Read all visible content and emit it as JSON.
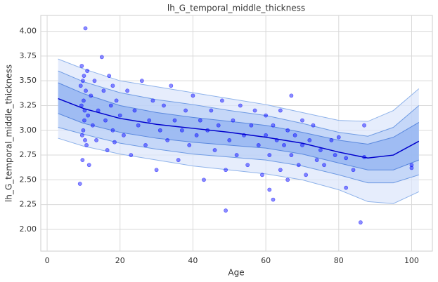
{
  "chart_data": {
    "type": "scatter",
    "title": "lh_G_temporal_middle_thickness",
    "x_label": "Age",
    "y_label": "lh_G_temporal_middle_thickness",
    "xlim": [
      -1.75,
      105.7
    ],
    "ylim": [
      1.78,
      4.16
    ],
    "xticks": [
      0,
      20,
      40,
      60,
      80,
      100
    ],
    "yticks": [
      {
        "value": 2.0,
        "label": "2.00"
      },
      {
        "value": 2.25,
        "label": "2.25"
      },
      {
        "value": 2.5,
        "label": "2.50"
      },
      {
        "value": 2.75,
        "label": "2.75"
      },
      {
        "value": 3.0,
        "label": "3.00"
      },
      {
        "value": 3.25,
        "label": "3.25"
      },
      {
        "value": 3.5,
        "label": "3.50"
      },
      {
        "value": 3.75,
        "label": "3.75"
      },
      {
        "value": 4.0,
        "label": "4.00"
      }
    ],
    "grid": true,
    "point_color": "#0000ff",
    "x": [
      9.5,
      9.8,
      10,
      10.2,
      10.4,
      9.7,
      10.1,
      10.3,
      9.9,
      10.6,
      10.8,
      11,
      9.2,
      9.4,
      9.6,
      10.5,
      9,
      11.2,
      11.5,
      12,
      12.5,
      13,
      13.5,
      14,
      15,
      15.5,
      16,
      16.5,
      17,
      17.5,
      18,
      18,
      18.5,
      19,
      20,
      21,
      22,
      23,
      24,
      25,
      26,
      27,
      28,
      29,
      30,
      31,
      32,
      33,
      34,
      35,
      36,
      37,
      38,
      39,
      40,
      41,
      42,
      43,
      44,
      45,
      46,
      47,
      48,
      49,
      49,
      50,
      51,
      52,
      53,
      54,
      55,
      56,
      57,
      58,
      59,
      60,
      60,
      61,
      61,
      62,
      62,
      63,
      64,
      64,
      65,
      66,
      66,
      67,
      67,
      68,
      69,
      70,
      70,
      71,
      72,
      73,
      74,
      75,
      76,
      78,
      79,
      80,
      82,
      82,
      84,
      86,
      87,
      87,
      100,
      100
    ],
    "y": [
      3.65,
      3.5,
      3.3,
      3.1,
      2.9,
      2.7,
      3.55,
      3.2,
      3.0,
      3.4,
      2.85,
      3.6,
      3.45,
      3.25,
      2.95,
      4.03,
      2.46,
      3.15,
      2.65,
      3.35,
      3.05,
      3.5,
      2.9,
      3.2,
      3.74,
      3.4,
      3.1,
      2.8,
      3.55,
      3.25,
      3.0,
      3.45,
      2.88,
      3.3,
      3.15,
      2.95,
      3.4,
      2.75,
      3.2,
      3.05,
      3.5,
      2.85,
      3.1,
      3.3,
      2.6,
      3.0,
      3.25,
      2.9,
      3.45,
      3.1,
      2.7,
      3.0,
      3.2,
      2.85,
      3.35,
      2.95,
      3.1,
      2.5,
      3.0,
      3.2,
      2.8,
      3.05,
      3.3,
      2.19,
      2.6,
      2.9,
      3.1,
      2.75,
      3.25,
      2.95,
      2.65,
      3.05,
      3.2,
      2.85,
      2.55,
      2.95,
      3.15,
      2.4,
      2.75,
      3.05,
      2.3,
      2.9,
      3.2,
      2.6,
      2.85,
      3.0,
      2.5,
      3.35,
      2.75,
      2.95,
      2.65,
      3.1,
      2.85,
      2.55,
      2.9,
      3.05,
      2.7,
      2.8,
      2.65,
      2.9,
      2.75,
      2.93,
      2.42,
      2.72,
      2.6,
      2.07,
      2.73,
      3.05,
      2.62,
      2.65
    ],
    "curve_x": [
      3,
      10,
      20,
      30,
      40,
      50,
      60,
      70,
      80,
      88,
      95,
      102
    ],
    "bands": [
      {
        "color": "#dce6fb",
        "edge": "#8fb3ea",
        "upper": [
          3.72,
          3.62,
          3.5,
          3.44,
          3.38,
          3.32,
          3.26,
          3.18,
          3.1,
          3.09,
          3.2,
          3.42
        ],
        "lower": [
          2.92,
          2.84,
          2.76,
          2.7,
          2.64,
          2.6,
          2.56,
          2.5,
          2.4,
          2.28,
          2.26,
          2.38
        ]
      },
      {
        "color": "#b7cdf7",
        "edge": "#6f9be3",
        "upper": [
          3.6,
          3.49,
          3.38,
          3.31,
          3.26,
          3.2,
          3.15,
          3.07,
          2.98,
          2.94,
          3.03,
          3.25
        ],
        "lower": [
          3.03,
          2.96,
          2.87,
          2.81,
          2.76,
          2.73,
          2.7,
          2.64,
          2.55,
          2.47,
          2.47,
          2.55
        ]
      },
      {
        "color": "#8fb1f1",
        "edge": "#5a88de",
        "upper": [
          3.48,
          3.37,
          3.25,
          3.18,
          3.13,
          3.09,
          3.05,
          2.98,
          2.9,
          2.86,
          2.93,
          3.08
        ],
        "lower": [
          3.17,
          3.07,
          2.98,
          2.92,
          2.88,
          2.85,
          2.82,
          2.76,
          2.67,
          2.6,
          2.6,
          2.7
        ]
      }
    ],
    "median": {
      "color": "#0000cc",
      "values": [
        3.32,
        3.22,
        3.12,
        3.06,
        3.02,
        2.98,
        2.93,
        2.87,
        2.78,
        2.72,
        2.75,
        2.89
      ]
    }
  }
}
